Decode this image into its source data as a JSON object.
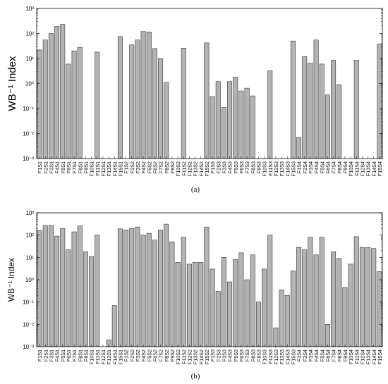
{
  "chart_data": [
    {
      "type": "bar",
      "panel_label": "(a)",
      "ylabel": "WB⁻¹ Index",
      "yscale": "log",
      "ylim": [
        0.001,
        1000
      ],
      "yticks": [
        "10⁻³",
        "10⁻²",
        "10⁻¹",
        "10⁰",
        "10¹",
        "10²",
        "10³"
      ],
      "grid": false,
      "bar_color": "#b3b3b3",
      "categories": [
        "F1S1",
        "F2S1",
        "F3S1",
        "F4S1",
        "F5S1",
        "F6S1",
        "F7S1",
        "F8S1",
        "F9S1",
        "F10S1",
        "F11S1",
        "F12S1",
        "F13S1",
        "F14S1",
        "F15S1",
        "F1S2",
        "F2S2",
        "F3S2",
        "F4S2",
        "F5S2",
        "F6S2",
        "F7S2",
        "F8S2",
        "F9S2",
        "F10S2",
        "F11S2",
        "F12S2",
        "F13S2",
        "F14S2",
        "F15S2",
        "F1S3",
        "F2S3",
        "F3S3",
        "F4S3",
        "F5S3",
        "F6S3",
        "F7S3",
        "F8S3",
        "F9S3",
        "F10S3",
        "F11S3",
        "F12S3",
        "F13S3",
        "F14S3",
        "F15S3",
        "F1S4",
        "F2S4",
        "F3S4",
        "F4S4",
        "F5S4",
        "F6S4",
        "F7S4",
        "F8S4",
        "F9S4",
        "F10S4",
        "F11S4",
        "F12S4",
        "F13S4",
        "F14S4",
        "F15S4"
      ],
      "values": [
        22,
        55,
        100,
        190,
        230,
        6,
        20,
        28,
        null,
        null,
        18,
        null,
        null,
        null,
        75,
        null,
        35,
        55,
        120,
        115,
        25,
        10,
        1.1,
        null,
        null,
        26,
        null,
        null,
        null,
        42,
        0.3,
        1.2,
        0.11,
        1.2,
        1.8,
        0.5,
        0.65,
        0.32,
        null,
        null,
        3.2,
        null,
        null,
        null,
        50,
        0.007,
        12,
        6.5,
        55,
        6,
        0.35,
        8.5,
        0.9,
        null,
        null,
        8.5,
        null,
        null,
        null,
        38
      ]
    },
    {
      "type": "bar",
      "panel_label": "(b)",
      "ylabel": "WB⁻¹ Index",
      "yscale": "log",
      "ylim": [
        0.001,
        1000
      ],
      "yticks": [
        "10⁻³",
        "10⁻²",
        "10⁻¹",
        "10⁰",
        "10¹",
        "10²",
        "10³"
      ],
      "grid": false,
      "bar_color": "#b3b3b3",
      "categories": [
        "F1S1",
        "F2S1",
        "F3S1",
        "F4S1",
        "F5S1",
        "F6S1",
        "F7S1",
        "F8S1",
        "F9S1",
        "F10S1",
        "F11S1",
        "F12S1",
        "F13S1",
        "F14S1",
        "F15S1",
        "F1S2",
        "F2S2",
        "F3S2",
        "F4S2",
        "F5S2",
        "F6S2",
        "F7S2",
        "F8S2",
        "F9S2",
        "F10S2",
        "F11S2",
        "F12S2",
        "F13S2",
        "F14S2",
        "F15S2",
        "F1S3",
        "F2S3",
        "F3S3",
        "F4S3",
        "F5S3",
        "F6S3",
        "F7S3",
        "F8S3",
        "F9S3",
        "F10S3",
        "F11S3",
        "F12S3",
        "F13S3",
        "F14S3",
        "F15S3",
        "F1S4",
        "F2S4",
        "F3S4",
        "F4S4",
        "F5S4",
        "F6S4",
        "F7S4",
        "F8S4",
        "F9S4",
        "F10S4",
        "F11S4",
        "F12S4",
        "F13S4",
        "F14S4",
        "F15S4"
      ],
      "values": [
        160,
        270,
        270,
        90,
        200,
        22,
        140,
        260,
        18,
        11,
        100,
        null,
        0.002,
        0.07,
        190,
        170,
        200,
        230,
        100,
        120,
        60,
        170,
        310,
        50,
        6,
        80,
        5,
        6,
        6,
        230,
        3,
        0.3,
        10,
        0.8,
        8,
        16,
        1,
        13,
        0.1,
        3,
        100,
        0.007,
        0.35,
        0.2,
        2.5,
        28,
        22,
        80,
        13,
        80,
        0.01,
        18,
        9,
        0.45,
        5,
        85,
        28,
        28,
        25,
        2.3
      ]
    }
  ]
}
